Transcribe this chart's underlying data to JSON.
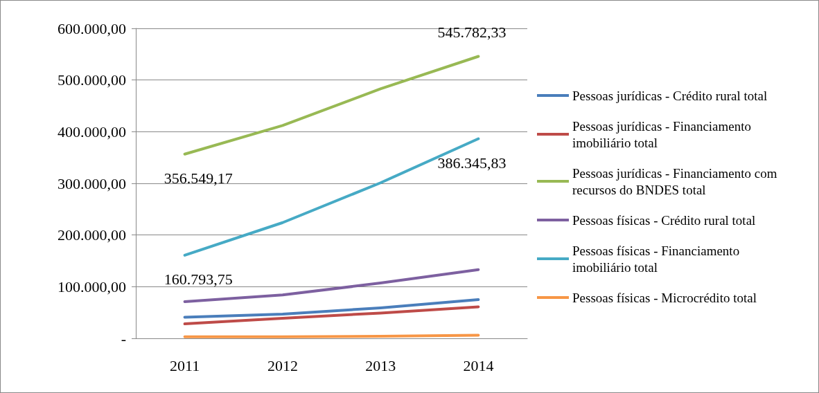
{
  "chart_data": {
    "type": "line",
    "categories": [
      "2011",
      "2012",
      "2013",
      "2014"
    ],
    "series": [
      {
        "name": "Pessoas jurídicas - Crédito rural total",
        "color": "#4a7ebb",
        "values": [
          41000,
          47000,
          59000,
          75000
        ]
      },
      {
        "name": "Pessoas jurídicas - Financiamento imobiliário total",
        "color": "#be4b48",
        "values": [
          28000,
          39000,
          49000,
          61000
        ]
      },
      {
        "name": "Pessoas jurídicas - Financiamento com recursos do BNDES total",
        "color": "#98b954",
        "values": [
          356549.17,
          412000,
          483000,
          545782.33
        ],
        "value_labels": [
          "356.549,17",
          null,
          null,
          "545.782,33"
        ]
      },
      {
        "name": "Pessoas físicas - Crédito rural total",
        "color": "#7d60a0",
        "values": [
          71000,
          84000,
          107000,
          133000
        ]
      },
      {
        "name": "Pessoas físicas - Financiamento imobiliário total",
        "color": "#46aac5",
        "values": [
          160793.75,
          224000,
          301000,
          386345.83
        ],
        "value_labels": [
          "160.793,75",
          null,
          null,
          "386.345,83"
        ]
      },
      {
        "name": "Pessoas físicas - Microcrédito total",
        "color": "#f79646",
        "values": [
          3000,
          3000,
          4000,
          6000
        ]
      }
    ],
    "ylim": [
      0,
      600000
    ],
    "yticks": [
      {
        "value": 0,
        "label": "-"
      },
      {
        "value": 100000,
        "label": "100.000,00"
      },
      {
        "value": 200000,
        "label": "200.000,00"
      },
      {
        "value": 300000,
        "label": "300.000,00"
      },
      {
        "value": 400000,
        "label": "400.000,00"
      },
      {
        "value": 500000,
        "label": "500.000,00"
      },
      {
        "value": 600000,
        "label": "600.000,00"
      }
    ],
    "grid": "y",
    "legend": "right",
    "marker": "none",
    "line_style": "solid"
  }
}
